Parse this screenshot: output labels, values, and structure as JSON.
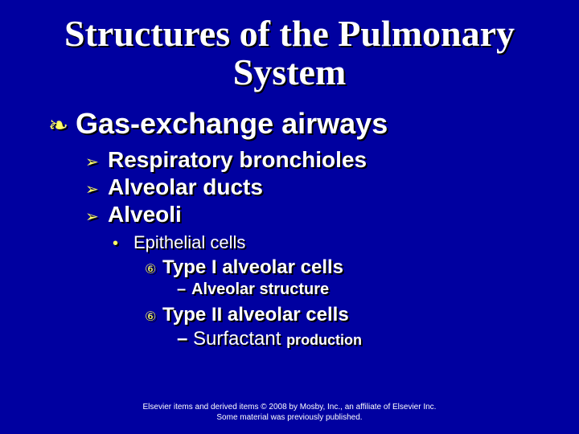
{
  "colors": {
    "background": "#0000a0",
    "text": "#ffffff",
    "bullet_accent": "#ffff66",
    "shadow": "#000000"
  },
  "title": "Structures of the Pulmonary System",
  "l1": {
    "bullet": "❧",
    "text": "Gas-exchange airways"
  },
  "l2a": {
    "bullet": "➢",
    "text": "Respiratory bronchioles"
  },
  "l2b": {
    "bullet": "➢",
    "text": "Alveolar ducts"
  },
  "l2c": {
    "bullet": "➢",
    "text": "Alveoli"
  },
  "l3": {
    "bullet": "•",
    "text": "Epithelial cells"
  },
  "l4a": {
    "bullet": "⑥",
    "text": "Type I alveolar cells"
  },
  "l5a": {
    "bullet": "–",
    "text": "Alveolar structure"
  },
  "l4b": {
    "bullet": "⑥",
    "text": "Type II alveolar cells"
  },
  "l5b": {
    "bullet": "–",
    "main": "Surfactant ",
    "small": "production"
  },
  "footer": {
    "line1": "Elsevier items and derived items © 2008 by Mosby, Inc., an affiliate of Elsevier Inc.",
    "line2": "Some material was previously published."
  }
}
